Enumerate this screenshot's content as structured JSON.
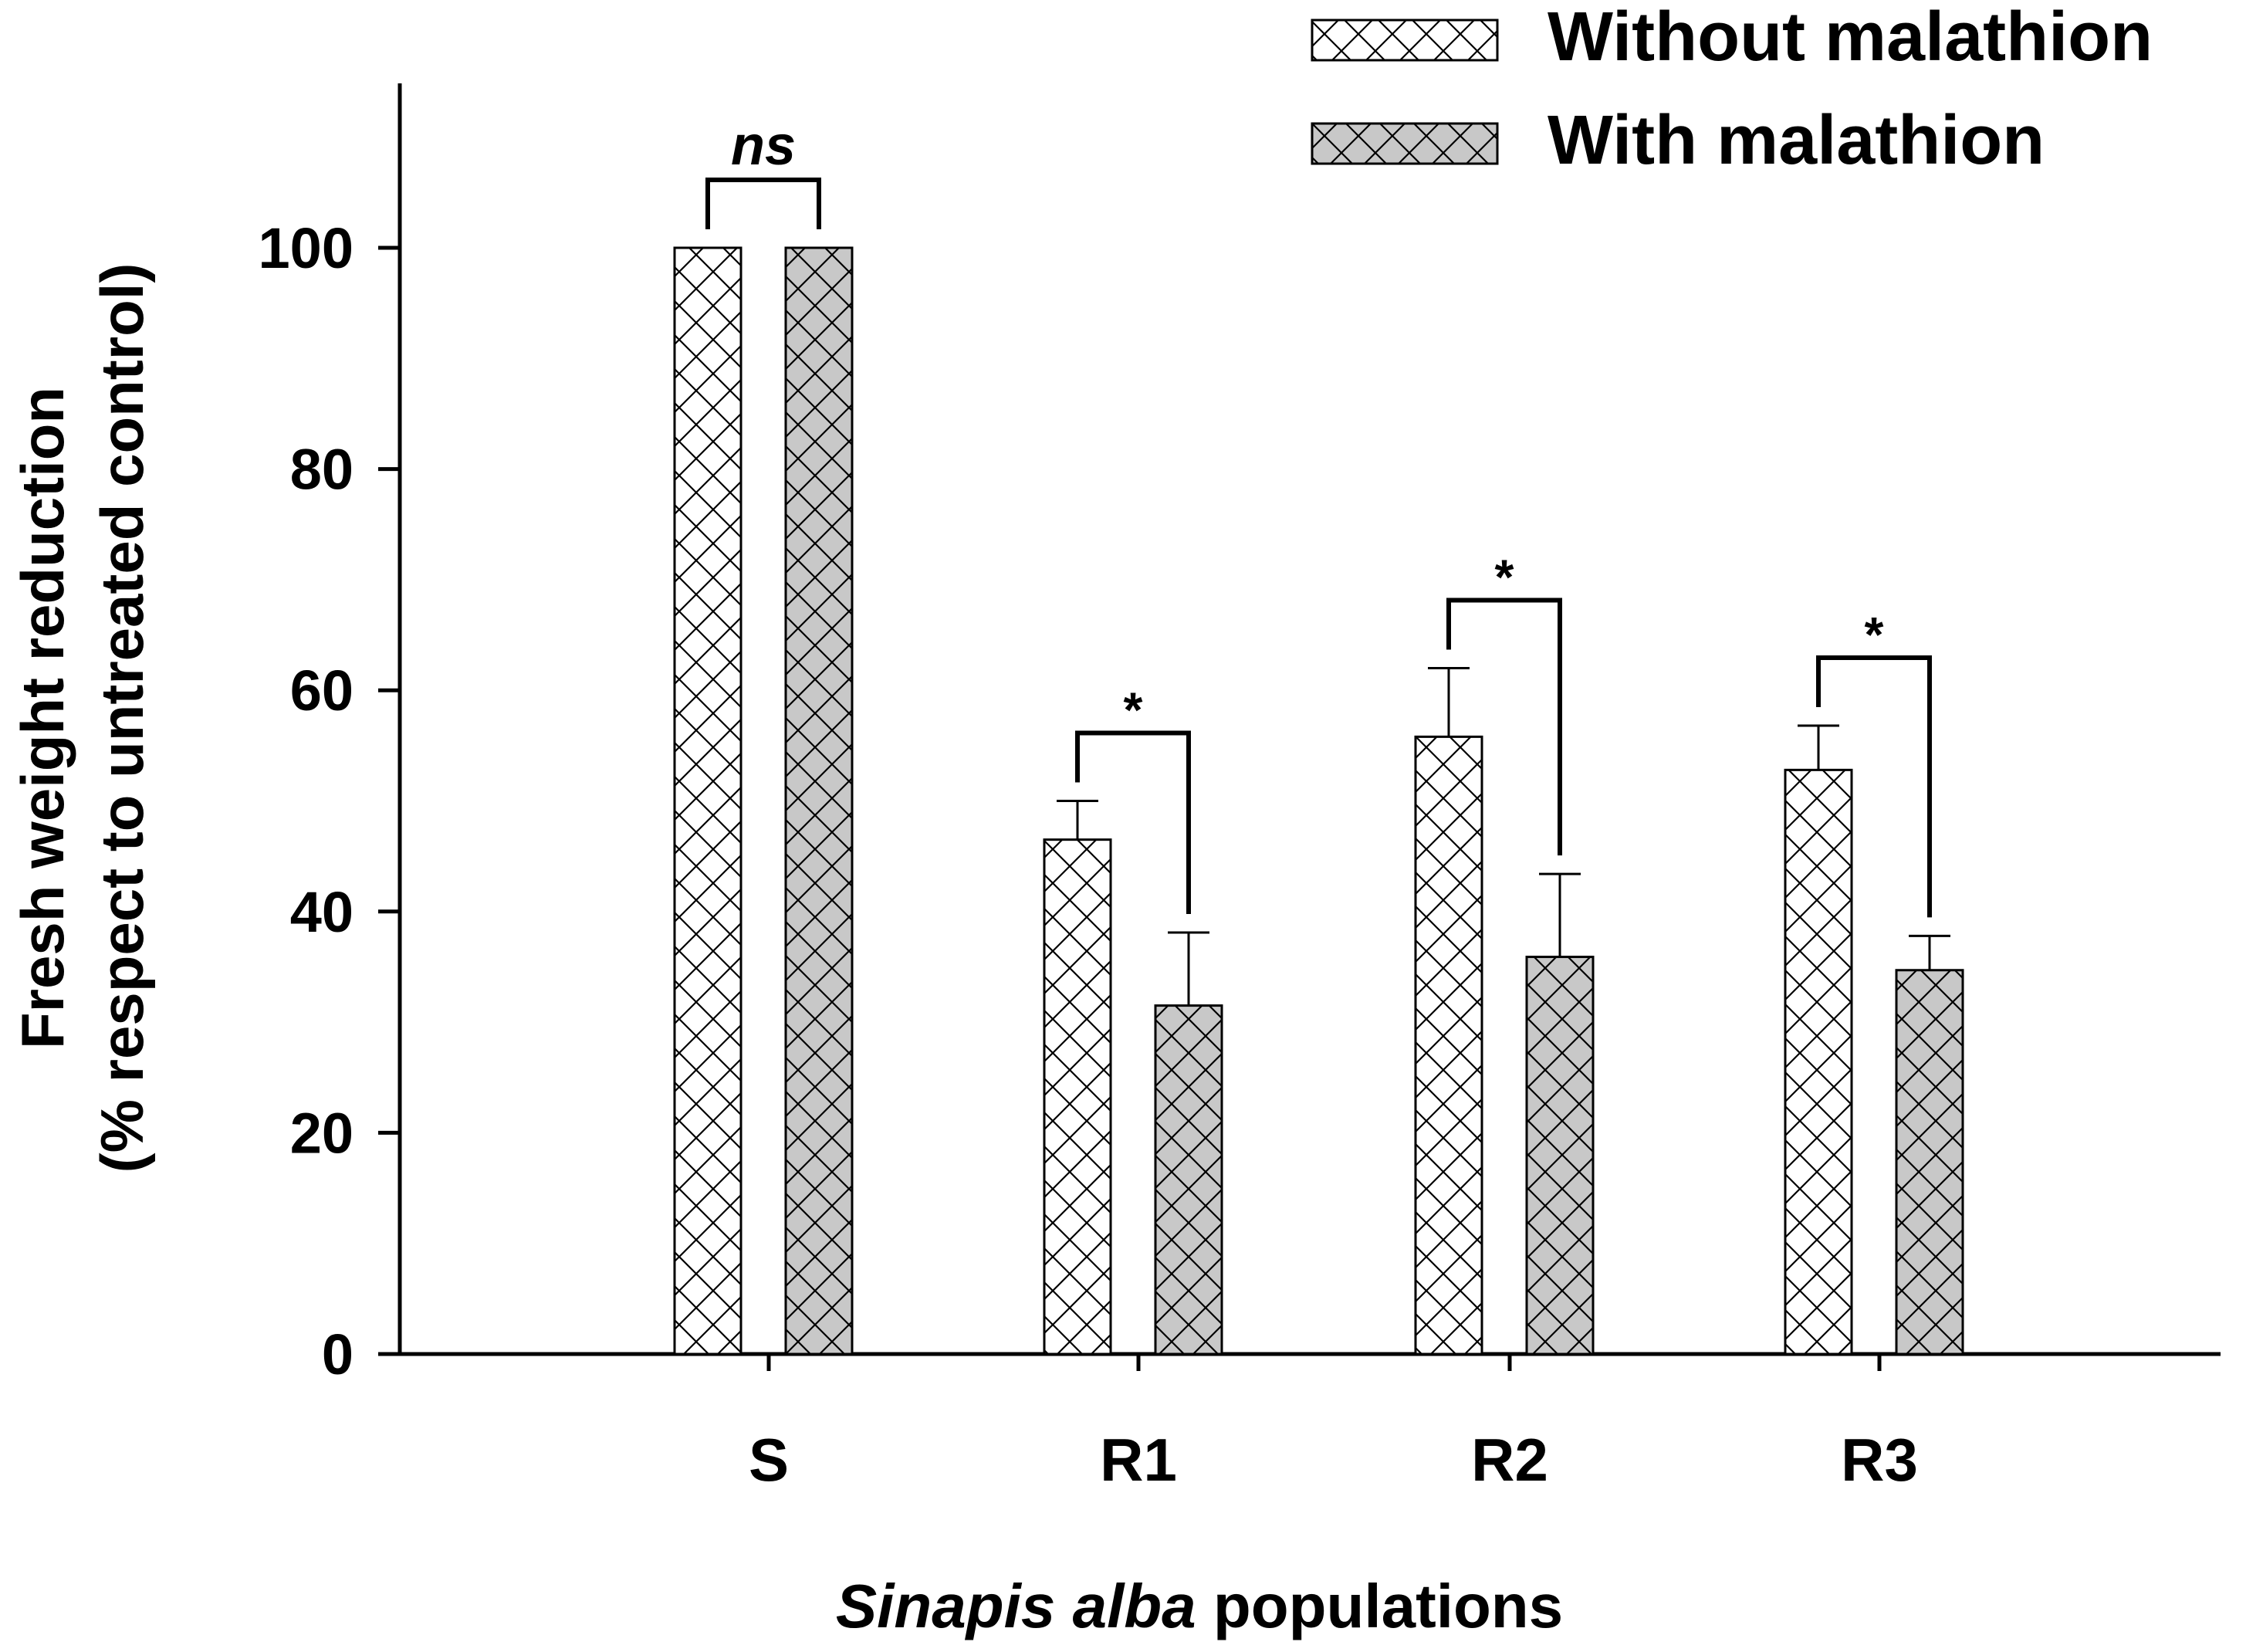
{
  "chart_data": {
    "type": "bar",
    "title": "",
    "xlabel_italic": "Sinapis alba",
    "xlabel_rest": " populations",
    "ylabel_line1": "Fresh weight reduction",
    "ylabel_line2": "(% respect to untreated control)",
    "categories": [
      "S",
      "R1",
      "R2",
      "R3"
    ],
    "series": [
      {
        "name": "Without malathion",
        "values": [
          100,
          46.5,
          55.8,
          52.8
        ],
        "errors": [
          0,
          3.5,
          6.2,
          4.0
        ],
        "color": "#ffffff"
      },
      {
        "name": "With malathion",
        "values": [
          100,
          31.5,
          35.9,
          34.7
        ],
        "errors": [
          0,
          6.6,
          7.5,
          3.1
        ],
        "color": "#c8c8c8"
      }
    ],
    "significance": [
      "ns",
      "*",
      "*",
      "*"
    ],
    "yticks": [
      0,
      20,
      40,
      60,
      80,
      100
    ],
    "ylim": [
      0,
      115
    ],
    "grid": false,
    "legend_position": "top-right",
    "hatch": "crosshatch"
  }
}
